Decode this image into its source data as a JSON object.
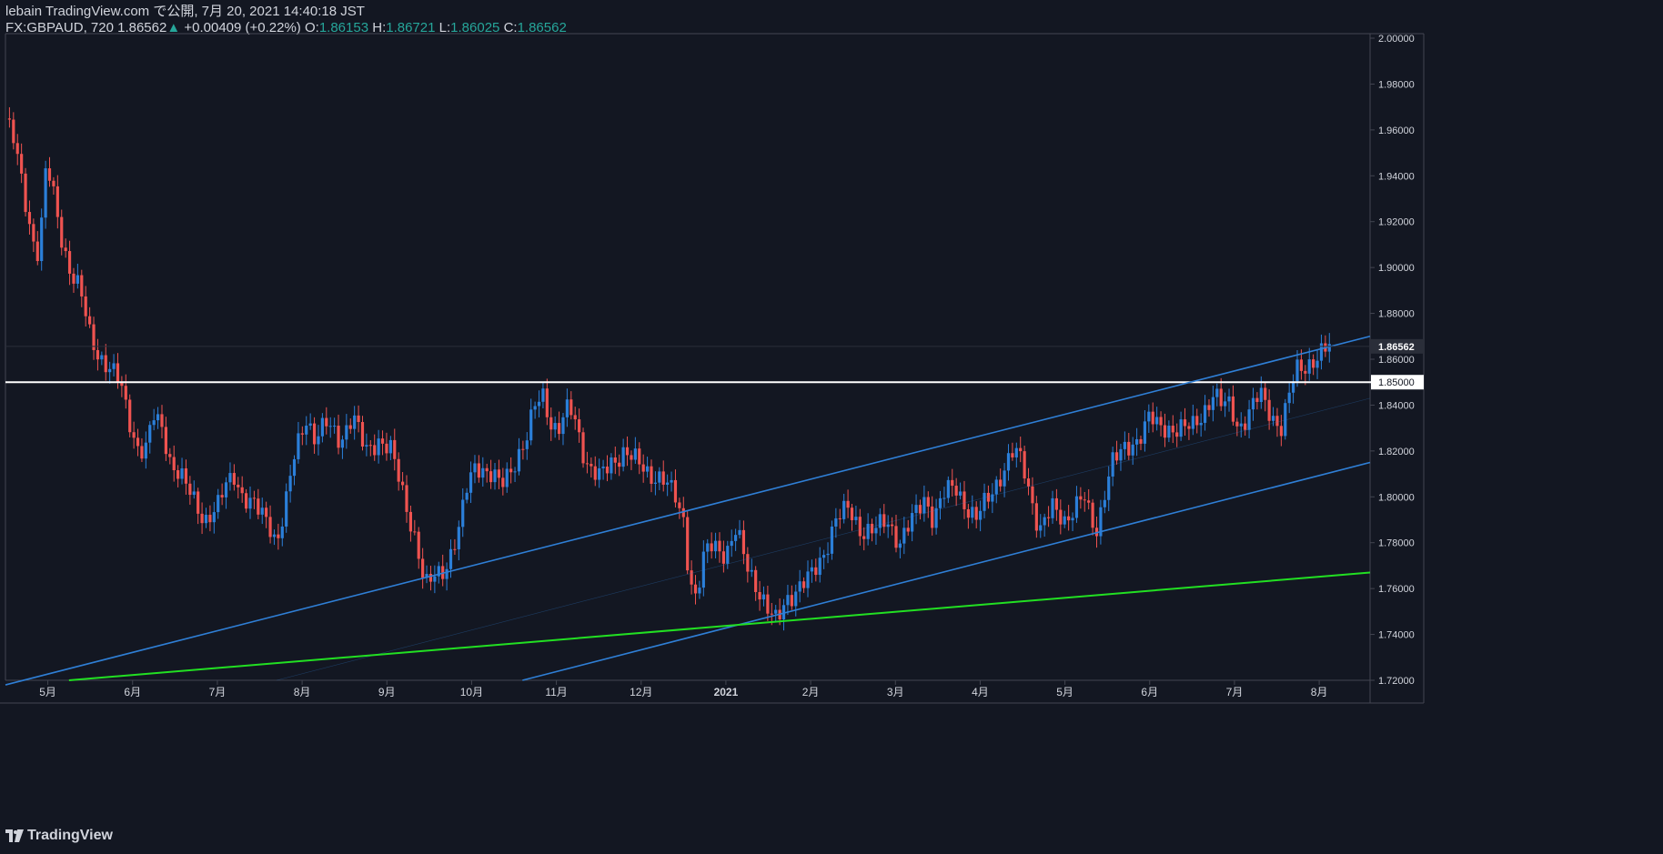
{
  "header": {
    "published": "lebain TradingView.com で公開, 7月 20, 2021 14:40:18 JST",
    "symbol": "FX:GBPAUD, 720",
    "last": "1.86562",
    "arrow": "▲",
    "change": "+0.00409 (+0.22%)",
    "o_label": "O:",
    "o_value": "1.86153",
    "h_label": "H:",
    "h_value": "1.86721",
    "l_label": "L:",
    "l_value": "1.86025",
    "c_label": "C:",
    "c_value": "1.86562"
  },
  "brand": {
    "name": "TradingView",
    "logo_icon": "tradingview-logo-icon"
  },
  "colors": {
    "background": "#131722",
    "up": "#2b7fd9",
    "down": "#ef5350",
    "channel": "#2f7fd6",
    "support": "#22e022",
    "level": "#ffffff",
    "axis_text": "#d1d4dc",
    "border": "#434651"
  },
  "chart_data": {
    "type": "candlestick",
    "title": "FX:GBPAUD, 720",
    "ylim": [
      1.72,
      2.0
    ],
    "y_ticks": [
      "1.72000",
      "1.74000",
      "1.76000",
      "1.78000",
      "1.80000",
      "1.82000",
      "1.84000",
      "1.86000",
      "1.88000",
      "1.90000",
      "1.92000",
      "1.94000",
      "1.96000",
      "1.98000",
      "2.00000"
    ],
    "x_ticks": [
      "5月",
      "6月",
      "7月",
      "8月",
      "9月",
      "10月",
      "11月",
      "12月",
      "2021",
      "2月",
      "3月",
      "4月",
      "5月",
      "6月",
      "7月",
      "8月"
    ],
    "x_tick_months": [
      0.5,
      1.5,
      2.5,
      3.5,
      4.5,
      5.5,
      6.5,
      7.5,
      8.5,
      9.5,
      10.5,
      11.5,
      12.5,
      13.5,
      14.5,
      15.5
    ],
    "x_range_months": [
      0.0,
      16.1
    ],
    "price_labels": [
      {
        "value": 1.86562,
        "label": "1.86562",
        "style": "last"
      },
      {
        "value": 1.85,
        "label": "1.85000",
        "style": "level"
      }
    ],
    "horizontal_line": 1.85,
    "price_path": [
      [
        0.0,
        1.965
      ],
      [
        0.1,
        1.955
      ],
      [
        0.18,
        1.94
      ],
      [
        0.28,
        1.92
      ],
      [
        0.37,
        1.905
      ],
      [
        0.45,
        1.925
      ],
      [
        0.48,
        1.945
      ],
      [
        0.55,
        1.935
      ],
      [
        0.65,
        1.915
      ],
      [
        0.75,
        1.9
      ],
      [
        0.88,
        1.89
      ],
      [
        1.0,
        1.87
      ],
      [
        1.1,
        1.862
      ],
      [
        1.25,
        1.855
      ],
      [
        1.35,
        1.85
      ],
      [
        1.45,
        1.835
      ],
      [
        1.55,
        1.822
      ],
      [
        1.65,
        1.82
      ],
      [
        1.75,
        1.835
      ],
      [
        1.85,
        1.83
      ],
      [
        1.95,
        1.815
      ],
      [
        2.05,
        1.81
      ],
      [
        2.2,
        1.8
      ],
      [
        2.35,
        1.79
      ],
      [
        2.5,
        1.795
      ],
      [
        2.6,
        1.805
      ],
      [
        2.7,
        1.81
      ],
      [
        2.8,
        1.8
      ],
      [
        2.95,
        1.795
      ],
      [
        3.1,
        1.79
      ],
      [
        3.2,
        1.78
      ],
      [
        3.3,
        1.795
      ],
      [
        3.42,
        1.82
      ],
      [
        3.55,
        1.835
      ],
      [
        3.65,
        1.825
      ],
      [
        3.8,
        1.832
      ],
      [
        3.95,
        1.825
      ],
      [
        4.1,
        1.835
      ],
      [
        4.25,
        1.82
      ],
      [
        4.4,
        1.825
      ],
      [
        4.55,
        1.82
      ],
      [
        4.7,
        1.8
      ],
      [
        4.85,
        1.78
      ],
      [
        4.95,
        1.76
      ],
      [
        5.05,
        1.765
      ],
      [
        5.2,
        1.77
      ],
      [
        5.35,
        1.785
      ],
      [
        5.45,
        1.805
      ],
      [
        5.55,
        1.815
      ],
      [
        5.7,
        1.81
      ],
      [
        5.85,
        1.805
      ],
      [
        6.0,
        1.815
      ],
      [
        6.15,
        1.825
      ],
      [
        6.25,
        1.84
      ],
      [
        6.35,
        1.845
      ],
      [
        6.45,
        1.83
      ],
      [
        6.55,
        1.83
      ],
      [
        6.65,
        1.84
      ],
      [
        6.75,
        1.83
      ],
      [
        6.85,
        1.815
      ],
      [
        7.0,
        1.808
      ],
      [
        7.15,
        1.815
      ],
      [
        7.3,
        1.82
      ],
      [
        7.45,
        1.815
      ],
      [
        7.6,
        1.81
      ],
      [
        7.75,
        1.808
      ],
      [
        7.9,
        1.8
      ],
      [
        8.0,
        1.79
      ],
      [
        8.07,
        1.765
      ],
      [
        8.15,
        1.755
      ],
      [
        8.25,
        1.775
      ],
      [
        8.35,
        1.78
      ],
      [
        8.5,
        1.775
      ],
      [
        8.62,
        1.785
      ],
      [
        8.75,
        1.77
      ],
      [
        8.88,
        1.76
      ],
      [
        9.0,
        1.75
      ],
      [
        9.1,
        1.745
      ],
      [
        9.2,
        1.755
      ],
      [
        9.35,
        1.76
      ],
      [
        9.5,
        1.765
      ],
      [
        9.65,
        1.775
      ],
      [
        9.8,
        1.79
      ],
      [
        9.95,
        1.795
      ],
      [
        10.1,
        1.785
      ],
      [
        10.25,
        1.785
      ],
      [
        10.4,
        1.79
      ],
      [
        10.55,
        1.78
      ],
      [
        10.7,
        1.79
      ],
      [
        10.85,
        1.8
      ],
      [
        10.95,
        1.79
      ],
      [
        11.05,
        1.8
      ],
      [
        11.2,
        1.805
      ],
      [
        11.35,
        1.795
      ],
      [
        11.45,
        1.79
      ],
      [
        11.6,
        1.8
      ],
      [
        11.75,
        1.81
      ],
      [
        11.9,
        1.82
      ],
      [
        12.0,
        1.815
      ],
      [
        12.1,
        1.8
      ],
      [
        12.2,
        1.785
      ],
      [
        12.35,
        1.795
      ],
      [
        12.5,
        1.79
      ],
      [
        12.6,
        1.795
      ],
      [
        12.72,
        1.8
      ],
      [
        12.8,
        1.79
      ],
      [
        12.88,
        1.785
      ],
      [
        12.95,
        1.8
      ],
      [
        13.05,
        1.815
      ],
      [
        13.2,
        1.82
      ],
      [
        13.35,
        1.825
      ],
      [
        13.5,
        1.835
      ],
      [
        13.6,
        1.83
      ],
      [
        13.7,
        1.83
      ],
      [
        13.85,
        1.83
      ],
      [
        14.0,
        1.83
      ],
      [
        14.1,
        1.835
      ],
      [
        14.25,
        1.845
      ],
      [
        14.35,
        1.84
      ],
      [
        14.45,
        1.84
      ],
      [
        14.55,
        1.83
      ],
      [
        14.65,
        1.835
      ],
      [
        14.8,
        1.845
      ],
      [
        14.95,
        1.835
      ],
      [
        15.05,
        1.83
      ],
      [
        15.12,
        1.84
      ],
      [
        15.22,
        1.855
      ],
      [
        15.32,
        1.857
      ],
      [
        15.45,
        1.86
      ],
      [
        15.55,
        1.863
      ],
      [
        15.62,
        1.8656
      ]
    ],
    "annotations": [
      {
        "type": "trendline",
        "name": "channel-upper",
        "color": "channel",
        "from": [
          0.0,
          1.718
        ],
        "to": [
          16.1,
          1.87
        ]
      },
      {
        "type": "trendline",
        "name": "channel-middle",
        "color": "channel-faint",
        "from": [
          3.2,
          1.72
        ],
        "to": [
          16.1,
          1.843
        ]
      },
      {
        "type": "trendline",
        "name": "channel-lower",
        "color": "channel",
        "from": [
          6.1,
          1.72
        ],
        "to": [
          16.1,
          1.815
        ]
      },
      {
        "type": "trendline",
        "name": "support-line",
        "color": "support",
        "from": [
          0.75,
          1.72
        ],
        "to": [
          16.1,
          1.767
        ]
      }
    ]
  }
}
